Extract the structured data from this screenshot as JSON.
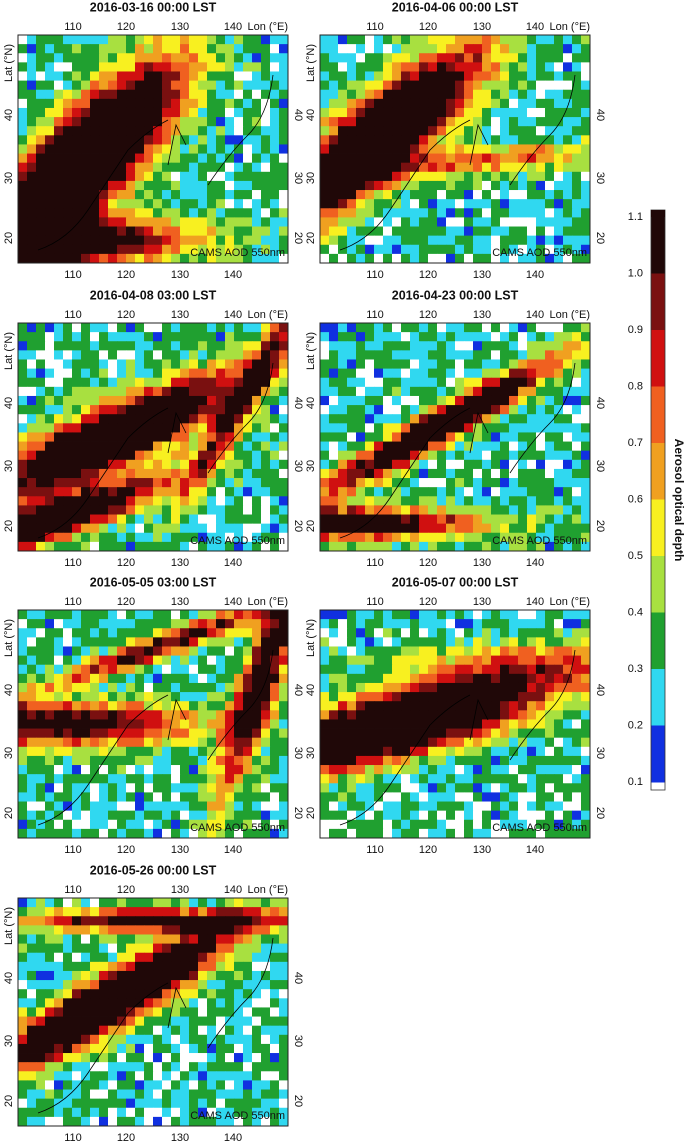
{
  "panels": [
    {
      "title": "2016-03-16 00:00 LST",
      "product": "CAMS AOD 550nm"
    },
    {
      "title": "2016-04-06 00:00 LST",
      "product": "CAMS AOD 550nm"
    },
    {
      "title": "2016-04-08 03:00 LST",
      "product": "CAMS AOD 550nm"
    },
    {
      "title": "2016-04-23 00:00 LST",
      "product": "CAMS AOD 550nm"
    },
    {
      "title": "2016-05-05 03:00 LST",
      "product": "CAMS AOD 550nm"
    },
    {
      "title": "2016-05-07 00:00 LST",
      "product": "CAMS AOD 550nm"
    },
    {
      "title": "2016-05-26 00:00 LST",
      "product": "CAMS AOD 550nm"
    }
  ],
  "axes": {
    "lon_label": "Lon (°E)",
    "lat_label": "Lat (°N)",
    "lon_ticks": [
      "110",
      "120",
      "130",
      "140"
    ],
    "lat_ticks": [
      "40",
      "30",
      "20"
    ]
  },
  "colorbar": {
    "label": "Aerosol optical depth",
    "ticks": [
      "1.1",
      "1.0",
      "0.9",
      "0.8",
      "0.7",
      "0.6",
      "0.5",
      "0.4",
      "0.3",
      "0.2",
      "0.1"
    ],
    "colors": [
      "#200808",
      "#7a1010",
      "#d01010",
      "#f06020",
      "#f0a020",
      "#f8f020",
      "#a8e040",
      "#20a030",
      "#30d8f0",
      "#1030e0"
    ]
  }
}
